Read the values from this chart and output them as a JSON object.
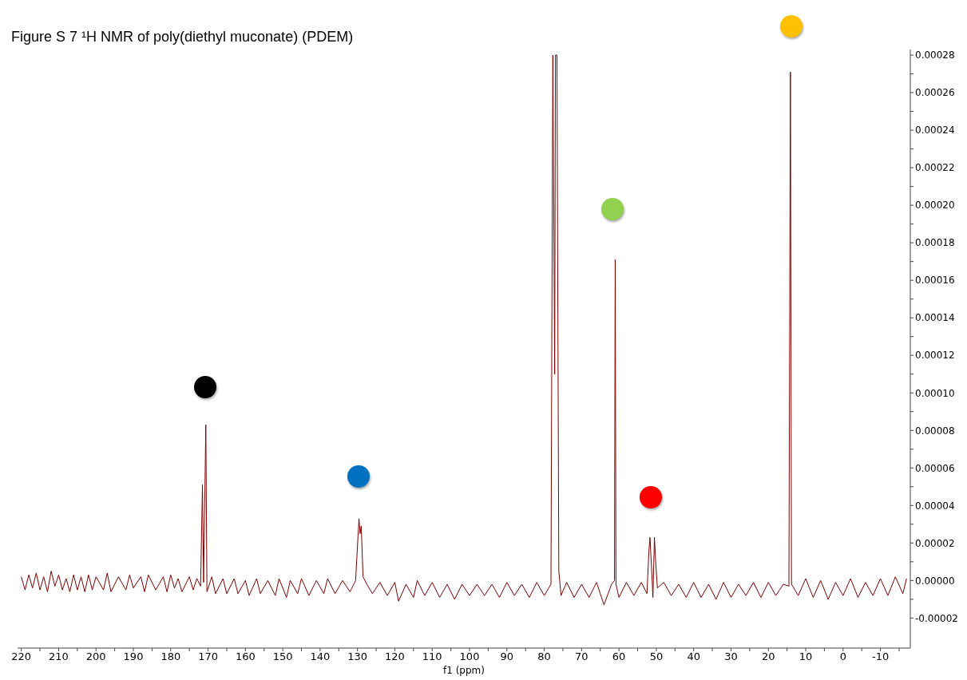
{
  "chart_data": {
    "type": "line",
    "title": "Figure S 7 ¹H NMR of poly(diethyl muconate) (PDEM)",
    "xlabel": "f1 (ppm)",
    "x": [
      220,
      219,
      218,
      217,
      216,
      215,
      214,
      213,
      212,
      211,
      210,
      209,
      208,
      207,
      206,
      205,
      204,
      203,
      202,
      201,
      200,
      198,
      197,
      196,
      194,
      192,
      191,
      190,
      188,
      187,
      186,
      184,
      182,
      181,
      180,
      179,
      178,
      177,
      175,
      174,
      173,
      172,
      171.5,
      171.2,
      170.6,
      170.3,
      169,
      168,
      166,
      165,
      163,
      162,
      160,
      159,
      157,
      156,
      154,
      152,
      151,
      149,
      148,
      146,
      145,
      143,
      141,
      139,
      138,
      136,
      134,
      132,
      130.5,
      129.6,
      129.3,
      129.0,
      128.5,
      127.5,
      126,
      124,
      122,
      120,
      119,
      117,
      115,
      114,
      112,
      110,
      108,
      106,
      104,
      102,
      100,
      98,
      96,
      94,
      92,
      90,
      88,
      86,
      84,
      82,
      80,
      78.2,
      77.7,
      77.2,
      77.0,
      76.6,
      76.1,
      75.5,
      74,
      72,
      70,
      68,
      66,
      64,
      62,
      61.2,
      61.0,
      60.8,
      60,
      58,
      56,
      54,
      52.5,
      52,
      51.7,
      51.3,
      50.9,
      50.5,
      50.2,
      49.7,
      48,
      46,
      44,
      42,
      40,
      38,
      36,
      34,
      32,
      30,
      28,
      26,
      24,
      22,
      20,
      18,
      16,
      14.5,
      14.1,
      13.8,
      12,
      10,
      8,
      6,
      4,
      2,
      0,
      -2,
      -4,
      -6,
      -8,
      -10,
      -12,
      -14,
      -16,
      -17
    ],
    "series": [
      {
        "color": "#7f0000",
        "values": [
          2e-06,
          -5e-06,
          3e-06,
          -4e-06,
          4e-06,
          -5e-06,
          2e-06,
          -6e-06,
          5e-06,
          -3e-06,
          3e-06,
          -5e-06,
          1e-06,
          -6e-06,
          3e-06,
          -5e-06,
          2e-06,
          -6e-06,
          3e-06,
          -5e-06,
          2e-06,
          -5e-06,
          4e-06,
          -6e-06,
          2e-06,
          -5e-06,
          3e-06,
          -4e-06,
          2e-06,
          -6e-06,
          3e-06,
          -5e-06,
          2e-06,
          -6e-06,
          3e-06,
          -4e-06,
          1e-06,
          -6e-06,
          2e-06,
          -5e-06,
          1e-06,
          -3e-06,
          5.1e-05,
          -1e-06,
          8.3e-05,
          -6e-06,
          2e-06,
          -7e-06,
          1e-06,
          -7e-06,
          1e-06,
          -7e-06,
          0,
          -8e-06,
          1e-06,
          -7e-06,
          0,
          -8e-06,
          1e-06,
          -9e-06,
          0,
          -7e-06,
          1e-06,
          -8e-06,
          0,
          -7e-06,
          1e-06,
          -7e-06,
          0,
          -6e-06,
          0,
          3.3e-05,
          2.5e-05,
          2.9e-05,
          2e-06,
          -2e-06,
          -7e-06,
          -1e-06,
          -8e-06,
          -1e-06,
          -1.1e-05,
          -2e-06,
          -9e-06,
          0,
          -8e-06,
          -1e-06,
          -9e-06,
          -2e-06,
          -1e-05,
          -2e-06,
          -8e-06,
          -2e-06,
          -8e-06,
          -2e-06,
          -9e-06,
          -1e-06,
          -8e-06,
          -2e-06,
          -9e-06,
          -1e-06,
          -8e-06,
          -2e-06,
          0.00028,
          0.00011,
          0.00028,
          0.00028,
          5e-06,
          -8e-06,
          -1e-06,
          -9e-06,
          -2e-06,
          -9e-06,
          -1e-06,
          -1.3e-05,
          -2e-06,
          0,
          0.000171,
          -2e-06,
          -9e-06,
          -1e-06,
          -8e-06,
          -1e-06,
          -7e-06,
          1.5e-05,
          2.3e-05,
          8e-06,
          -9e-06,
          2.3e-05,
          1.1e-05,
          -4e-06,
          -1e-06,
          -8e-06,
          -2e-06,
          -9e-06,
          -1e-06,
          -9e-06,
          -2e-06,
          -1e-05,
          -1e-06,
          -9e-06,
          -2e-06,
          -8e-06,
          -1e-06,
          -9e-06,
          -1e-06,
          -8e-06,
          -2e-06,
          -3e-06,
          0.000271,
          -2e-06,
          -8e-06,
          1e-06,
          -9e-06,
          0,
          -1e-05,
          -1e-06,
          -8e-06,
          1e-06,
          -9e-06,
          -1e-06,
          -8e-06,
          1e-06,
          -8e-06,
          2e-06,
          -7e-06,
          1e-06
        ]
      }
    ],
    "xlim": [
      221,
      -18
    ],
    "xticks": [
      220,
      {
        "value": 215,
        "label": null
      },
      210,
      {
        "value": 205,
        "label": null
      },
      200,
      {
        "value": 195,
        "label": null
      },
      190,
      {
        "value": 185,
        "label": null
      },
      180,
      {
        "value": 175,
        "label": null
      },
      170,
      {
        "value": 165,
        "label": null
      },
      160,
      {
        "value": 155,
        "label": null
      },
      150,
      {
        "value": 145,
        "label": null
      },
      140,
      {
        "value": 135,
        "label": null
      },
      130,
      {
        "value": 125,
        "label": null
      },
      120,
      {
        "value": 115,
        "label": null
      },
      110,
      {
        "value": 105,
        "label": null
      },
      100,
      {
        "value": 95,
        "label": null
      },
      90,
      {
        "value": 85,
        "label": null
      },
      80,
      {
        "value": 75,
        "label": null
      },
      70,
      {
        "value": 65,
        "label": null
      },
      60,
      {
        "value": 55,
        "label": null
      },
      50,
      {
        "value": 45,
        "label": null
      },
      40,
      {
        "value": 35,
        "label": null
      },
      30,
      {
        "value": 25,
        "label": null
      },
      20,
      {
        "value": 15,
        "label": null
      },
      10,
      {
        "value": 5,
        "label": null
      },
      0,
      {
        "value": -5,
        "label": null
      },
      -10,
      {
        "value": -15,
        "label": null
      }
    ],
    "ylim": [
      -3.6e-05,
      0.000283
    ],
    "yticks": [
      {
        "value": -2e-05,
        "label": "-0.00002"
      },
      {
        "value": -1e-05,
        "label": null
      },
      {
        "value": 0,
        "label": "0.00000"
      },
      {
        "value": 1e-05,
        "label": null
      },
      {
        "value": 2e-05,
        "label": "0.00002"
      },
      {
        "value": 3e-05,
        "label": null
      },
      {
        "value": 4e-05,
        "label": "0.00004"
      },
      {
        "value": 5e-05,
        "label": null
      },
      {
        "value": 6e-05,
        "label": "0.00006"
      },
      {
        "value": 7e-05,
        "label": null
      },
      {
        "value": 8e-05,
        "label": "0.00008"
      },
      {
        "value": 9e-05,
        "label": null
      },
      {
        "value": 0.0001,
        "label": "0.00010"
      },
      {
        "value": 0.00011,
        "label": null
      },
      {
        "value": 0.00012,
        "label": "0.00012"
      },
      {
        "value": 0.00013,
        "label": null
      },
      {
        "value": 0.00014,
        "label": "0.00014"
      },
      {
        "value": 0.00015,
        "label": null
      },
      {
        "value": 0.00016,
        "label": "0.00016"
      },
      {
        "value": 0.00017,
        "label": null
      },
      {
        "value": 0.00018,
        "label": "0.00018"
      },
      {
        "value": 0.00019,
        "label": null
      },
      {
        "value": 0.0002,
        "label": "0.00020"
      },
      {
        "value": 0.00021,
        "label": null
      },
      {
        "value": 0.00022,
        "label": "0.00022"
      },
      {
        "value": 0.00023,
        "label": null
      },
      {
        "value": 0.00024,
        "label": "0.00024"
      },
      {
        "value": 0.00025,
        "label": null
      },
      {
        "value": 0.00026,
        "label": "0.00026"
      },
      {
        "value": 0.00027,
        "label": null
      },
      {
        "value": 0.00028,
        "label": "0.00028"
      }
    ]
  }
}
